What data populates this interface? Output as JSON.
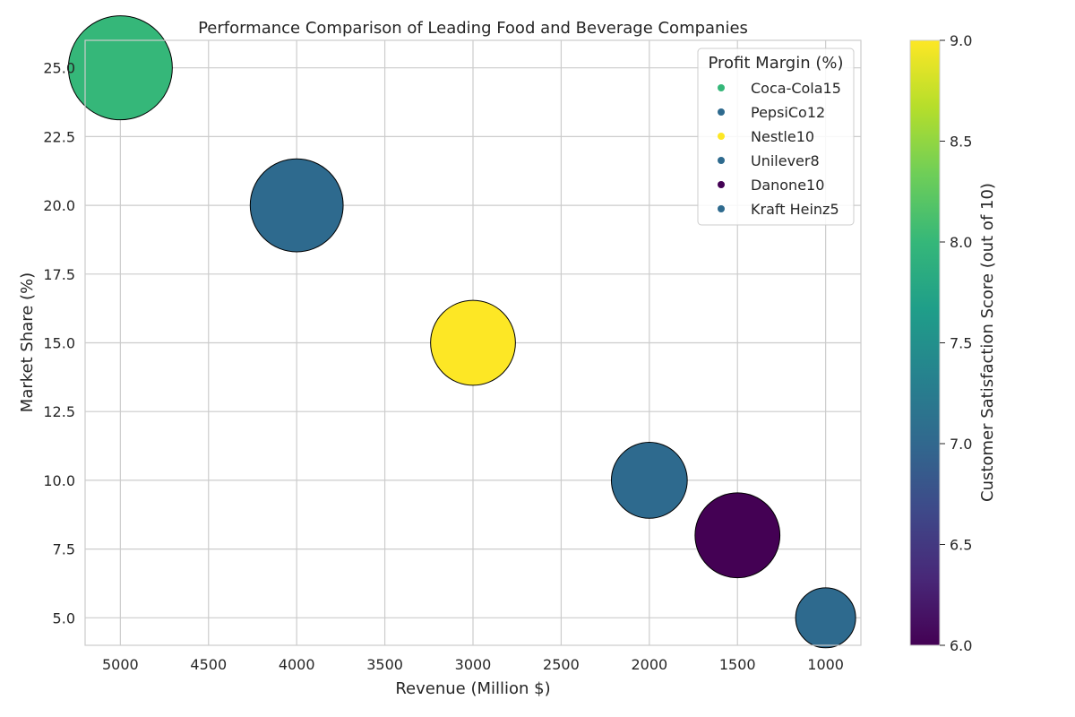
{
  "chart_data": {
    "type": "scatter",
    "title": "Performance Comparison of Leading Food and Beverage Companies",
    "xlabel": "Revenue (Million $)",
    "ylabel": "Market Share (%)",
    "xlim": [
      5200,
      800
    ],
    "x_inverted": true,
    "ylim": [
      4.0,
      26.0
    ],
    "xticks": [
      5000,
      4500,
      4000,
      3500,
      3000,
      2500,
      2000,
      1500,
      1000
    ],
    "yticks": [
      "5.0",
      "7.5",
      "10.0",
      "12.5",
      "15.0",
      "17.5",
      "20.0",
      "22.5",
      "25.0"
    ],
    "grid": true,
    "points": [
      {
        "company": "Coca-Cola",
        "revenue": 5000,
        "market_share": 25,
        "profit_margin": 15,
        "satisfaction": 8.0,
        "color": "#35b779"
      },
      {
        "company": "PepsiCo",
        "revenue": 4000,
        "market_share": 20,
        "profit_margin": 12,
        "satisfaction": 7.0,
        "color": "#2e6a8e"
      },
      {
        "company": "Nestle",
        "revenue": 3000,
        "market_share": 15,
        "profit_margin": 10,
        "satisfaction": 9.0,
        "color": "#fde725"
      },
      {
        "company": "Unilever",
        "revenue": 2000,
        "market_share": 10,
        "profit_margin": 8,
        "satisfaction": 7.0,
        "color": "#2e6a8e"
      },
      {
        "company": "Danone",
        "revenue": 1500,
        "market_share": 8,
        "profit_margin": 10,
        "satisfaction": 6.0,
        "color": "#440154"
      },
      {
        "company": "Kraft Heinz",
        "revenue": 1000,
        "market_share": 5,
        "profit_margin": 5,
        "satisfaction": 7.0,
        "color": "#2e6a8e"
      }
    ],
    "legend": {
      "title": "Profit Margin (%)",
      "placement": "top-right",
      "entries": [
        "Coca-Cola15",
        "PepsiCo12",
        "Nestle10",
        "Unilever8",
        "Danone10",
        "Kraft Heinz5"
      ]
    },
    "colorbar": {
      "label": "Customer Satisfaction Score (out of 10)",
      "range": [
        6.0,
        9.0
      ],
      "ticks": [
        "6.0",
        "6.5",
        "7.0",
        "7.5",
        "8.0",
        "8.5",
        "9.0"
      ],
      "colormap": "viridis",
      "stops": [
        "#440154",
        "#482878",
        "#3e4989",
        "#31688e",
        "#26828e",
        "#1f9e89",
        "#35b779",
        "#6ece58",
        "#b5de2b",
        "#fde725"
      ]
    }
  }
}
